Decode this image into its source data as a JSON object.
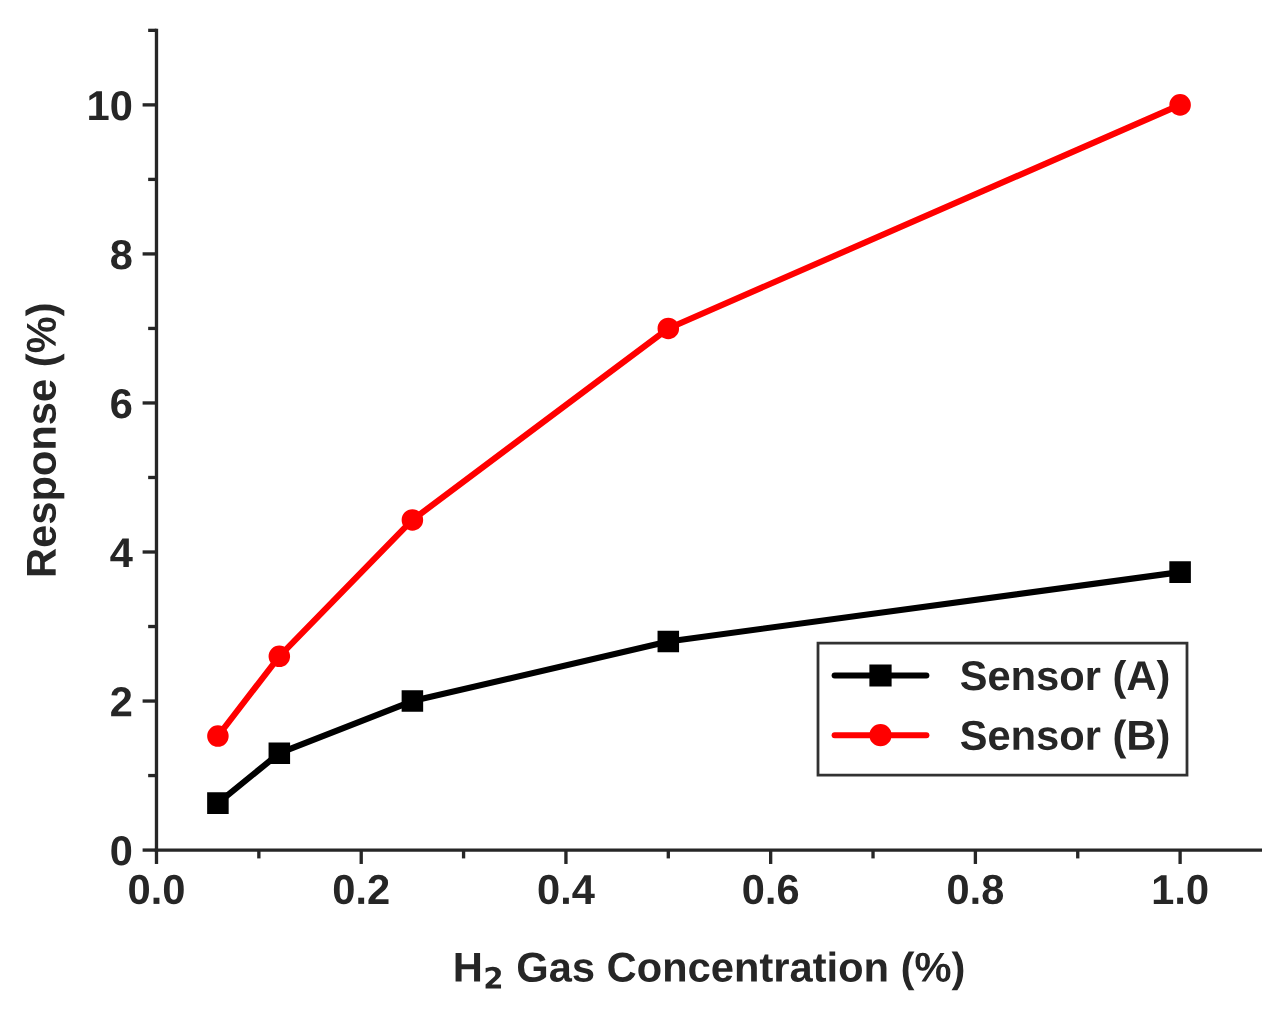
{
  "chart_data": {
    "type": "line",
    "xlabel": "H$_{2}$ Gas Concentration (%)",
    "ylabel": "Response (%)",
    "x": [
      0.06,
      0.12,
      0.25,
      0.5,
      1.0
    ],
    "series": [
      {
        "name": "Sensor (A)",
        "color": "#000000",
        "marker": "square",
        "values": [
          0.63,
          1.3,
          2.0,
          2.8,
          3.73
        ]
      },
      {
        "name": "Sensor (B)",
        "color": "#ff0000",
        "marker": "circle",
        "values": [
          1.53,
          2.6,
          4.43,
          7.0,
          10.0
        ]
      }
    ],
    "xlim": [
      0,
      1.08
    ],
    "ylim": [
      0,
      11
    ],
    "xticks": [
      {
        "value": 0,
        "label": "0.0"
      },
      0.2,
      0.4,
      0.6,
      0.8,
      {
        "value": 1.0,
        "label": "1.0"
      }
    ],
    "yticks": [
      0,
      2,
      4,
      6,
      8,
      10
    ],
    "grid": false,
    "legend": "bottom right",
    "line_style": "solid"
  }
}
